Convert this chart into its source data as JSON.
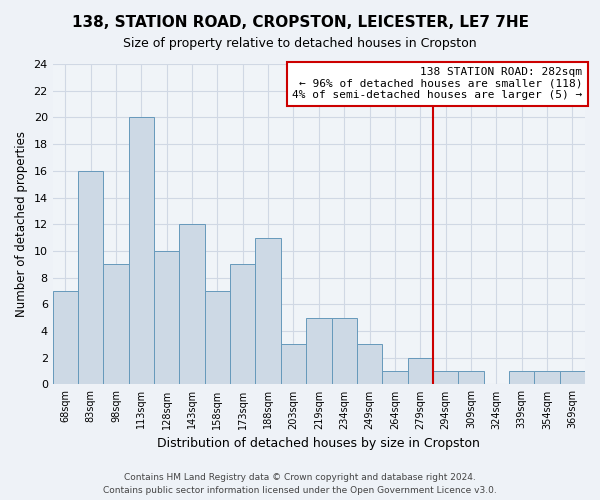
{
  "title": "138, STATION ROAD, CROPSTON, LEICESTER, LE7 7HE",
  "subtitle": "Size of property relative to detached houses in Cropston",
  "xlabel": "Distribution of detached houses by size in Cropston",
  "ylabel": "Number of detached properties",
  "bar_labels": [
    "68sqm",
    "83sqm",
    "98sqm",
    "113sqm",
    "128sqm",
    "143sqm",
    "158sqm",
    "173sqm",
    "188sqm",
    "203sqm",
    "219sqm",
    "234sqm",
    "249sqm",
    "264sqm",
    "279sqm",
    "294sqm",
    "309sqm",
    "324sqm",
    "339sqm",
    "354sqm",
    "369sqm"
  ],
  "bar_heights": [
    7,
    16,
    9,
    20,
    10,
    12,
    7,
    9,
    11,
    3,
    5,
    5,
    3,
    1,
    2,
    1,
    1,
    0,
    1,
    1,
    1
  ],
  "bar_color": "#cdd9e5",
  "bar_edge_color": "#6699bb",
  "vline_index": 14,
  "vline_color": "#cc0000",
  "annotation_line1": "138 STATION ROAD: 282sqm",
  "annotation_line2": "← 96% of detached houses are smaller (118)",
  "annotation_line3": "4% of semi-detached houses are larger (5) →",
  "annotation_box_color": "#ffffff",
  "annotation_box_edge_color": "#cc0000",
  "ylim": [
    0,
    24
  ],
  "yticks": [
    0,
    2,
    4,
    6,
    8,
    10,
    12,
    14,
    16,
    18,
    20,
    22,
    24
  ],
  "footer_line1": "Contains HM Land Registry data © Crown copyright and database right 2024.",
  "footer_line2": "Contains public sector information licensed under the Open Government Licence v3.0.",
  "bg_color": "#eef2f7",
  "plot_bg_color": "#f0f4f8",
  "grid_color": "#d0d8e4"
}
